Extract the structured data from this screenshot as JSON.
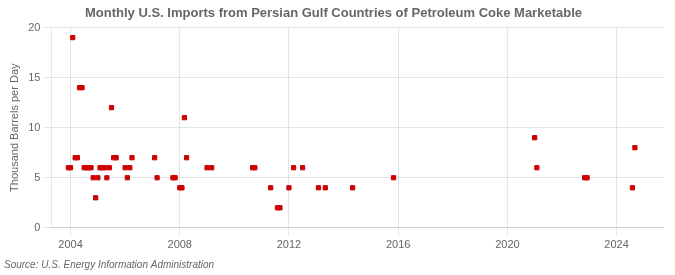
{
  "chart_data": {
    "type": "scatter",
    "title": "Monthly U.S. Imports from Persian Gulf Countries of Petroleum Coke Marketable",
    "y_label": "Thousand Barrels per Day",
    "annotation": "Source: U.S. Energy Information Administration",
    "x": [
      2003.92,
      2004.0,
      2004.08,
      2004.17,
      2004.25,
      2004.33,
      2004.42,
      2004.5,
      2004.58,
      2004.67,
      2004.75,
      2004.83,
      2004.92,
      2005.0,
      2005.08,
      2005.17,
      2005.25,
      2005.33,
      2005.42,
      2005.5,
      2005.58,
      2005.67,
      2006.0,
      2006.08,
      2006.17,
      2006.25,
      2007.08,
      2007.17,
      2007.75,
      2007.83,
      2008.0,
      2008.08,
      2008.17,
      2008.25,
      2009.0,
      2009.17,
      2010.67,
      2010.75,
      2011.33,
      2011.58,
      2011.67,
      2012.0,
      2012.17,
      2012.5,
      2013.08,
      2013.33,
      2014.33,
      2015.83,
      2021.0,
      2021.08,
      2022.83,
      2022.92,
      2024.58,
      2024.67
    ],
    "values": [
      6,
      6,
      19,
      7,
      7,
      14,
      14,
      6,
      6,
      6,
      6,
      5,
      3,
      5,
      6,
      6,
      6,
      5,
      6,
      12,
      7,
      7,
      6,
      5,
      6,
      7,
      7,
      5,
      5,
      5,
      4,
      4,
      11,
      7,
      6,
      6,
      6,
      6,
      4,
      2,
      2,
      4,
      6,
      6,
      4,
      4,
      4,
      5,
      9,
      6,
      5,
      5,
      4,
      8
    ],
    "color": "#cc0000",
    "marker": "square",
    "xlim": [
      2003.3,
      2025.7
    ],
    "xticks": [
      2004,
      2008,
      2012,
      2016,
      2020,
      2024
    ],
    "ylim": [
      0,
      20
    ],
    "yticks": [
      0,
      5,
      10,
      15,
      20
    ],
    "grid": true
  }
}
